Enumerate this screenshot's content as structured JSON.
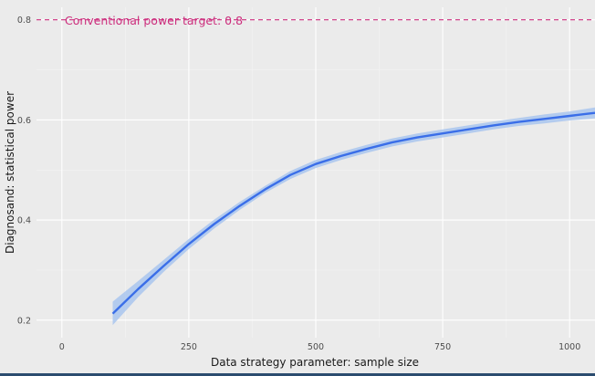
{
  "chart_data": {
    "type": "line",
    "title": "",
    "xlabel": "Data strategy parameter: sample size",
    "ylabel": "Diagnosand: statistical power",
    "xlim": [
      -50,
      1050
    ],
    "ylim": [
      0.165,
      0.825
    ],
    "x_ticks": [
      0,
      250,
      500,
      750,
      1000
    ],
    "x_tick_labels": [
      "0",
      "250",
      "500",
      "750",
      "1000"
    ],
    "y_ticks": [
      0.2,
      0.4,
      0.6,
      0.8
    ],
    "y_tick_labels": [
      "0.2",
      "0.4",
      "0.6",
      "0.8"
    ],
    "grid": true,
    "line_color": "#3a6ee8",
    "band_color": "#a9c6ee",
    "series": [
      {
        "x": [
          100,
          150,
          200,
          250,
          300,
          350,
          400,
          450,
          500,
          550,
          600,
          650,
          700,
          750,
          800,
          850,
          900,
          950,
          1000,
          1050
        ],
        "y": [
          0.213,
          0.262,
          0.308,
          0.352,
          0.392,
          0.428,
          0.461,
          0.49,
          0.512,
          0.528,
          0.542,
          0.555,
          0.565,
          0.573,
          0.581,
          0.589,
          0.596,
          0.602,
          0.608,
          0.614
        ],
        "lower": [
          0.19,
          0.246,
          0.296,
          0.342,
          0.383,
          0.42,
          0.454,
          0.482,
          0.504,
          0.52,
          0.534,
          0.547,
          0.557,
          0.565,
          0.573,
          0.581,
          0.588,
          0.593,
          0.599,
          0.603
        ],
        "upper": [
          0.237,
          0.278,
          0.32,
          0.362,
          0.401,
          0.436,
          0.468,
          0.498,
          0.52,
          0.536,
          0.55,
          0.563,
          0.573,
          0.581,
          0.589,
          0.597,
          0.604,
          0.611,
          0.617,
          0.625
        ]
      }
    ],
    "reference_line": {
      "y": 0.8,
      "color": "#cc2e7d"
    },
    "annotation": {
      "text": "Conventional power target: 0.8",
      "color": "#cc2e7d"
    }
  }
}
